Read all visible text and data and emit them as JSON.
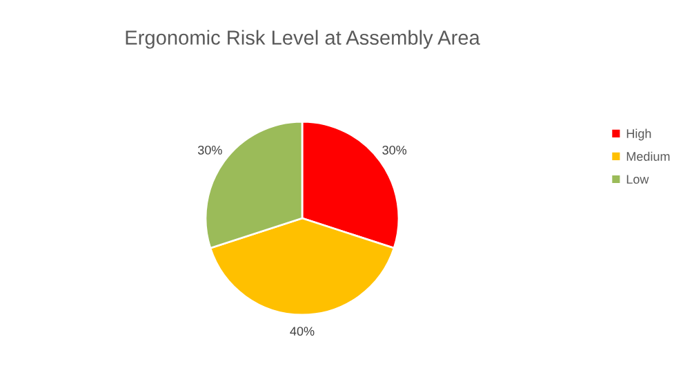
{
  "chart_data": {
    "type": "pie",
    "title": "Ergonomic Risk Level at Assembly Area",
    "categories": [
      "High",
      "Medium",
      "Low"
    ],
    "values": [
      30,
      40,
      30
    ],
    "colors": [
      "#ff0000",
      "#ffc000",
      "#9bbb59"
    ],
    "value_labels": [
      "30%",
      "40%",
      "30%"
    ],
    "legend": "right"
  }
}
